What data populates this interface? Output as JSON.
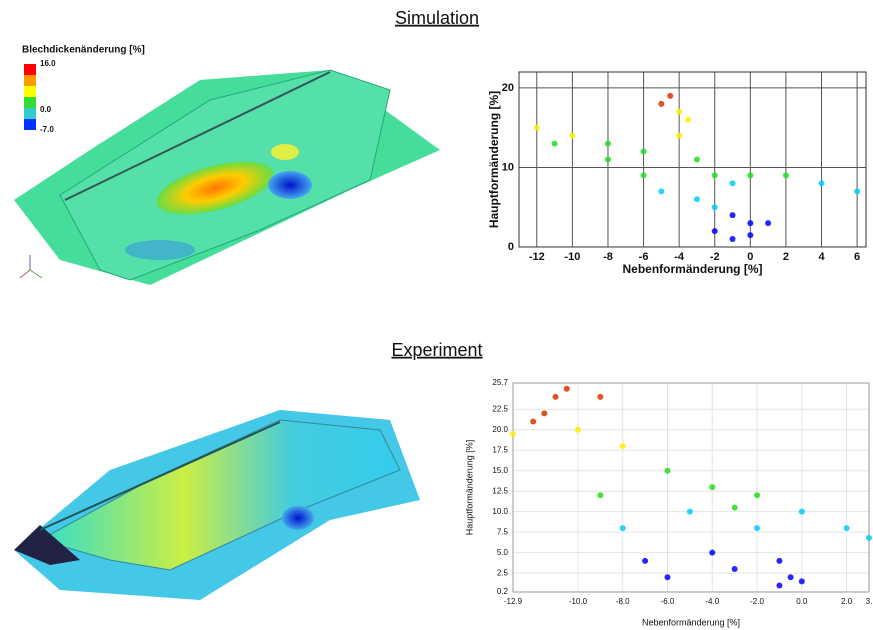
{
  "sections": [
    {
      "title": "Simulation"
    },
    {
      "title": "Experiment"
    }
  ],
  "legend": {
    "title": "Blechdickenänderung [%]",
    "ticks": [
      {
        "value": 16,
        "label": "16.0"
      },
      {
        "value": 0,
        "label": "0.0"
      },
      {
        "value": -7,
        "label": "-7.0"
      }
    ],
    "colors": [
      "#ff0000",
      "#ff9900",
      "#ffff00",
      "#33dd33",
      "#33cccc",
      "#0033ff"
    ]
  },
  "chart_data": [
    {
      "type": "scatter",
      "xlabel": "Nebenformänderung [%]",
      "ylabel": "Hauptformänderung [%]",
      "x": [
        -12,
        -11,
        -10,
        -8,
        -6,
        -5,
        -4,
        -3.5,
        -4,
        -3,
        -2,
        -1,
        0,
        2,
        4,
        6,
        -2,
        -1,
        0,
        1,
        -2,
        -1,
        0,
        -6,
        -8,
        -5,
        -3,
        -4.5
      ],
      "values": [
        15,
        13,
        14,
        13,
        12,
        18,
        17,
        16,
        14,
        11,
        9,
        8,
        9,
        9,
        8,
        7,
        5,
        4,
        3,
        3,
        2,
        1,
        1.5,
        9,
        11,
        7,
        6,
        19
      ],
      "colormap": [
        "#0000ff",
        "#00ccff",
        "#22dd22",
        "#ffee00",
        "#dd3300"
      ],
      "xlim": [
        -13,
        6.5
      ],
      "ylim": [
        0,
        22
      ],
      "xticks": [
        -12,
        -10,
        -8,
        -6,
        -4,
        -2,
        0,
        2,
        4,
        6
      ],
      "yticks": [
        0,
        10,
        20
      ],
      "grid": true
    },
    {
      "type": "scatter",
      "xlabel": "Nebenformänderung [%]",
      "ylabel": "Hauptformänderung [%]",
      "x": [
        -12.9,
        -12,
        -11.5,
        -11,
        -10.5,
        -9,
        -10,
        -8,
        -6,
        -4,
        -2,
        0,
        2,
        3,
        -9,
        -8,
        -7,
        -6,
        -4,
        -2,
        -1,
        -0.5,
        0,
        -1,
        -3,
        -5,
        -3
      ],
      "values": [
        19.5,
        21,
        22,
        24,
        25,
        24,
        20,
        18,
        15,
        13,
        12,
        10,
        8,
        6.8,
        12,
        8,
        4,
        2,
        5,
        8,
        4,
        2,
        1.5,
        1,
        3,
        10,
        10.5
      ],
      "colormap": [
        "#0000ff",
        "#00ccff",
        "#22dd22",
        "#ffee00",
        "#dd3300"
      ],
      "xlim": [
        -12.9,
        3
      ],
      "ylim": [
        0.2,
        25.7
      ],
      "xticks": [
        -12.9,
        {
          "value": -10,
          "label": "-10.0"
        },
        {
          "value": -8,
          "label": "-8.0"
        },
        {
          "value": -6,
          "label": "-6.0"
        },
        {
          "value": -4,
          "label": "-4.0"
        },
        {
          "value": -2,
          "label": "-2.0"
        },
        {
          "value": 0,
          "label": "0.0"
        },
        {
          "value": 2,
          "label": "2.0"
        },
        {
          "value": 3,
          "label": "3."
        }
      ],
      "yticks": [
        0.2,
        2.5,
        {
          "value": 5,
          "label": "5.0"
        },
        7.5,
        {
          "value": 10,
          "label": "10.0"
        },
        12.5,
        {
          "value": 15,
          "label": "15.0"
        },
        17.5,
        {
          "value": 20,
          "label": "20.0"
        },
        22.5,
        25.7
      ],
      "grid": true
    }
  ]
}
